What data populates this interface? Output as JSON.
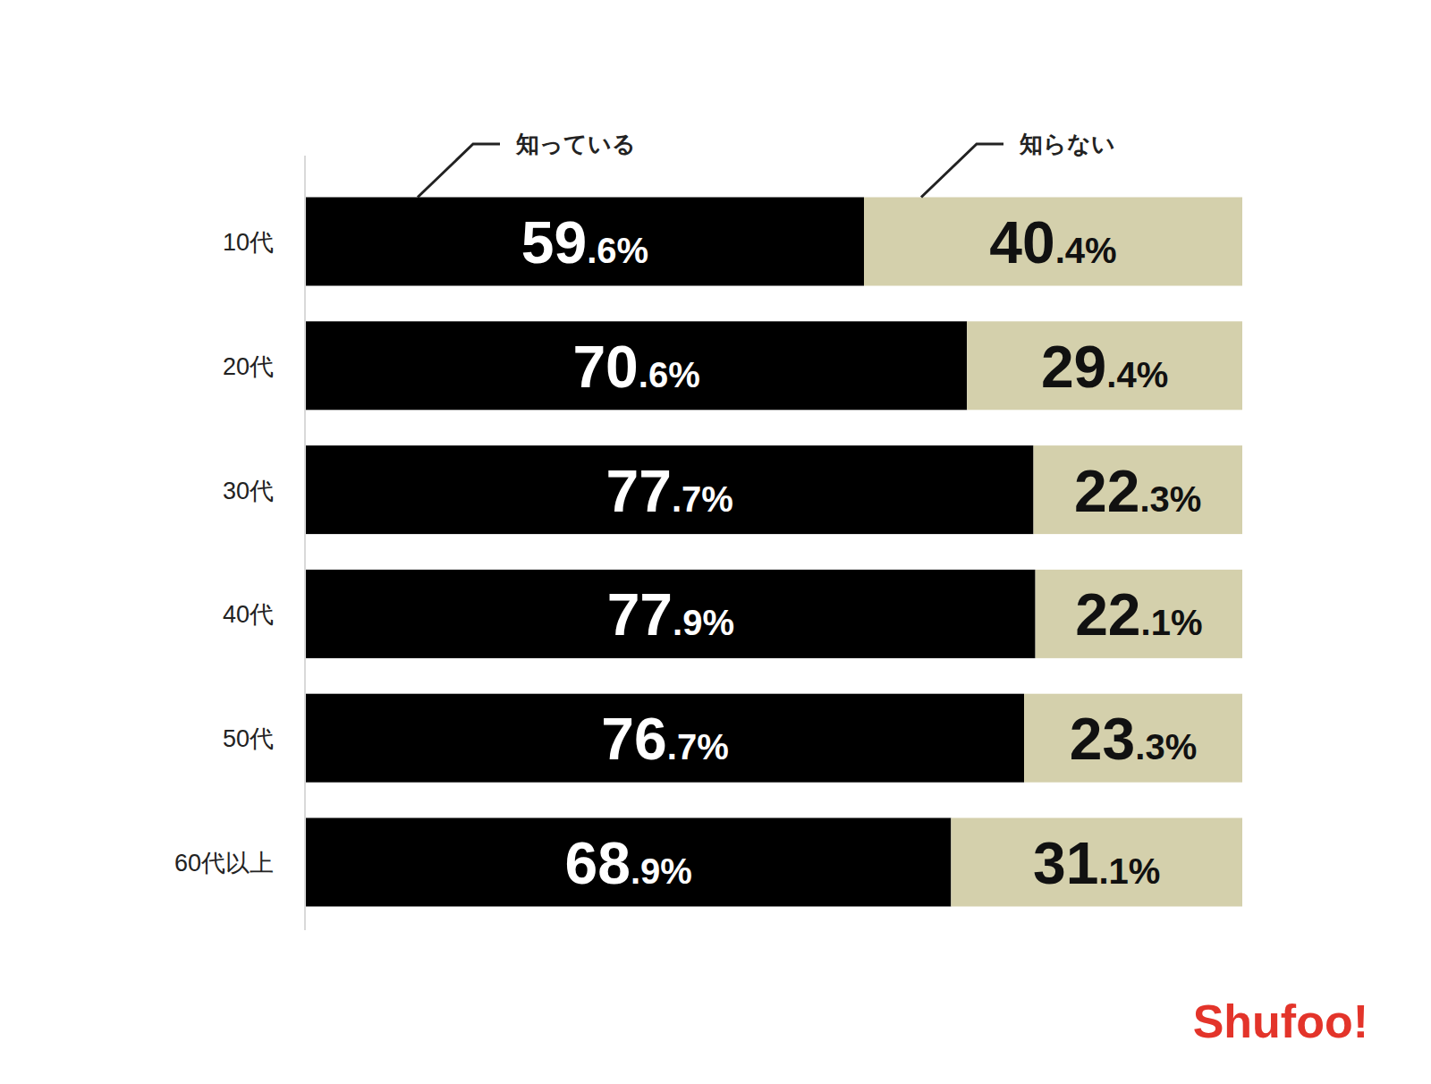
{
  "chart_data": {
    "type": "bar",
    "orientation": "horizontal",
    "stacked": true,
    "data_labels": true,
    "tick_labels": "y",
    "categories": [
      "10代",
      "20代",
      "30代",
      "40代",
      "50代",
      "60代以上"
    ],
    "xlim": [
      0,
      100
    ],
    "series": [
      {
        "name": "知っている",
        "color": "#000000",
        "values": [
          59.6,
          70.6,
          77.7,
          77.9,
          76.7,
          68.9
        ],
        "value_labels": [
          "59.6%",
          "70.6%",
          "77.7%",
          "77.9%",
          "76.7%",
          "68.9%"
        ]
      },
      {
        "name": "知らない",
        "color": "#d4d0ac",
        "values": [
          40.4,
          29.4,
          22.3,
          22.1,
          23.3,
          31.1
        ],
        "value_labels": [
          "40.4%",
          "29.4%",
          "22.3%",
          "22.1%",
          "23.3%",
          "31.1%"
        ]
      }
    ],
    "annotations": [
      {
        "text": "Shufoo!",
        "color": "#e3342a"
      }
    ]
  }
}
